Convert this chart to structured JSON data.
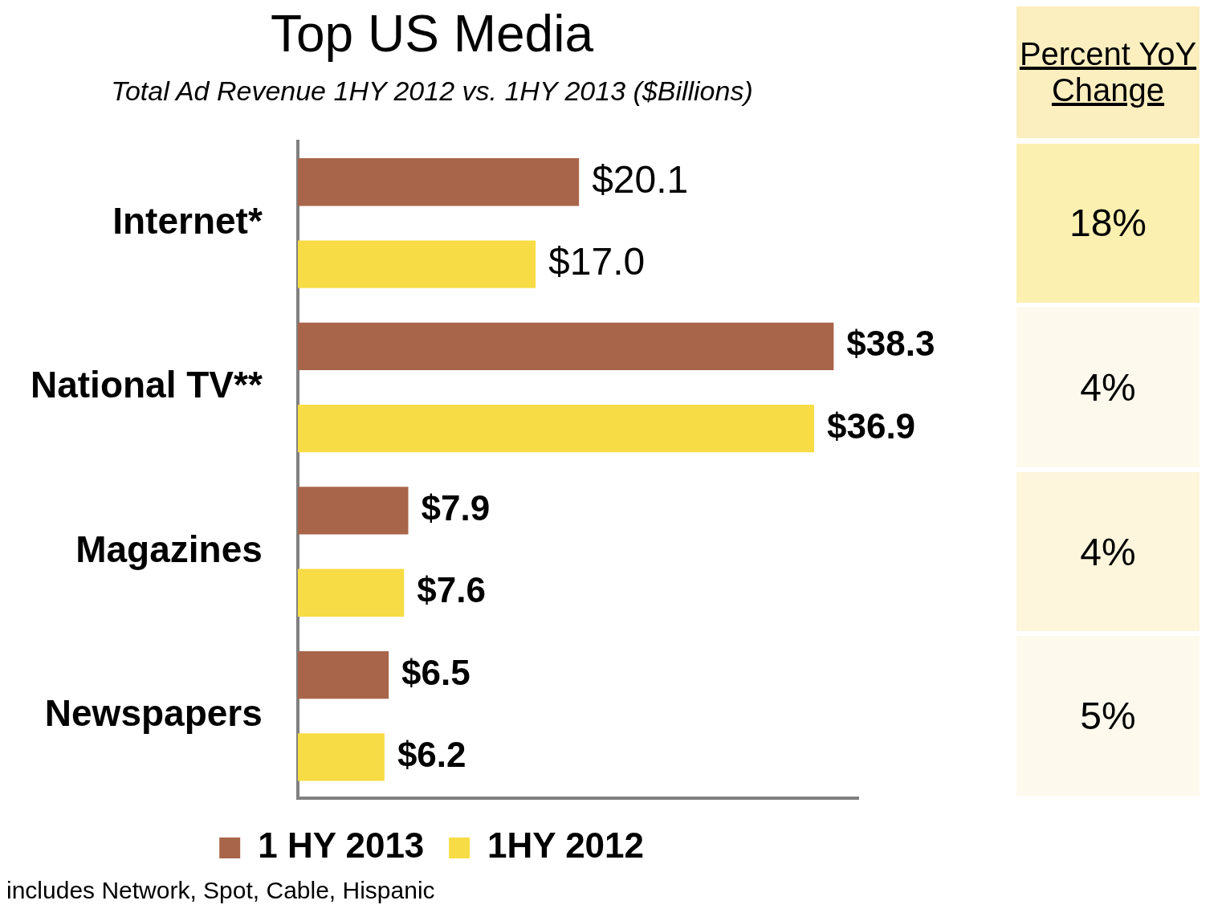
{
  "chart_data": {
    "type": "bar",
    "orientation": "horizontal",
    "title": "Top US Media",
    "subtitle": "Total Ad Revenue 1HY 2012 vs. 1HY 2013 ($Billions)",
    "categories": [
      "Internet*",
      "National TV**",
      "Magazines",
      "Newspapers"
    ],
    "series": [
      {
        "name": "1 HY 2013",
        "color": "#a9654a",
        "values": [
          20.1,
          38.3,
          7.9,
          6.5
        ],
        "value_labels": [
          "$20.1",
          "$38.3",
          "$7.9",
          "$6.5"
        ]
      },
      {
        "name": "1HY 2012",
        "color": "#f7dc45",
        "values": [
          17.0,
          36.9,
          7.6,
          6.2
        ],
        "value_labels": [
          "$17.0",
          "$36.9",
          "$7.6",
          "$6.2"
        ]
      }
    ],
    "tick_labels": "y",
    "legend": "bottom",
    "annotations": [
      "Percent YoY Change",
      "18%",
      "4%",
      "4%",
      "5%",
      "includes Network, Spot, Cable, Hispanic"
    ]
  }
}
